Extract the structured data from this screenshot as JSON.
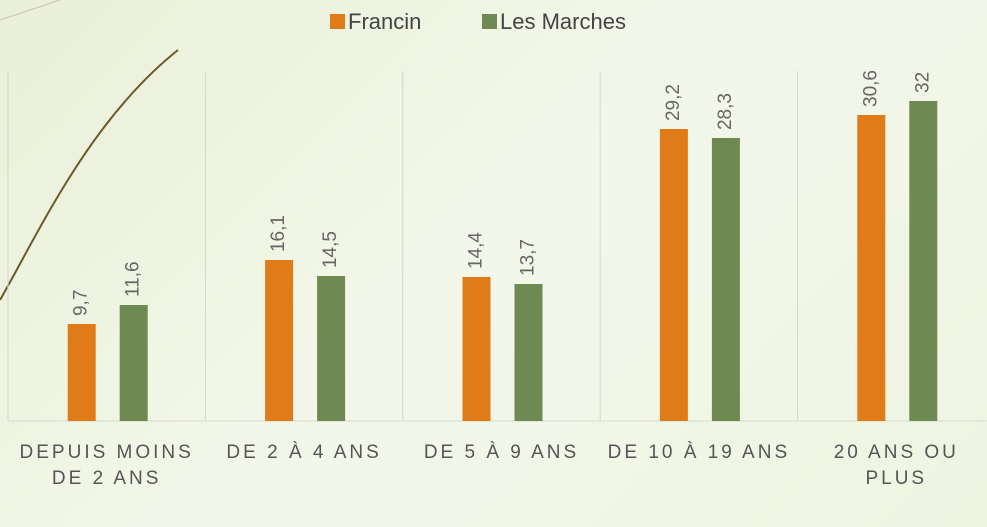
{
  "chart_data": {
    "type": "bar",
    "categories": [
      "DEPUIS MOINS DE 2 ANS",
      "DE 2 À 4 ANS",
      "DE 5 À 9 ANS",
      "DE 10 À 19 ANS",
      "20 ANS OU PLUS"
    ],
    "series": [
      {
        "name": "Francin",
        "color": "#e07b1a",
        "values": [
          9.7,
          16.1,
          14.4,
          29.2,
          30.6
        ],
        "value_labels": [
          "9,7",
          "16,1",
          "14,4",
          "29,2",
          "30,6"
        ]
      },
      {
        "name": "Les Marches",
        "color": "#6e8a52",
        "values": [
          11.6,
          14.5,
          13.7,
          28.3,
          32
        ],
        "value_labels": [
          "11,6",
          "14,5",
          "13,7",
          "28,3",
          "32"
        ]
      }
    ],
    "ylim": [
      0,
      35
    ]
  }
}
